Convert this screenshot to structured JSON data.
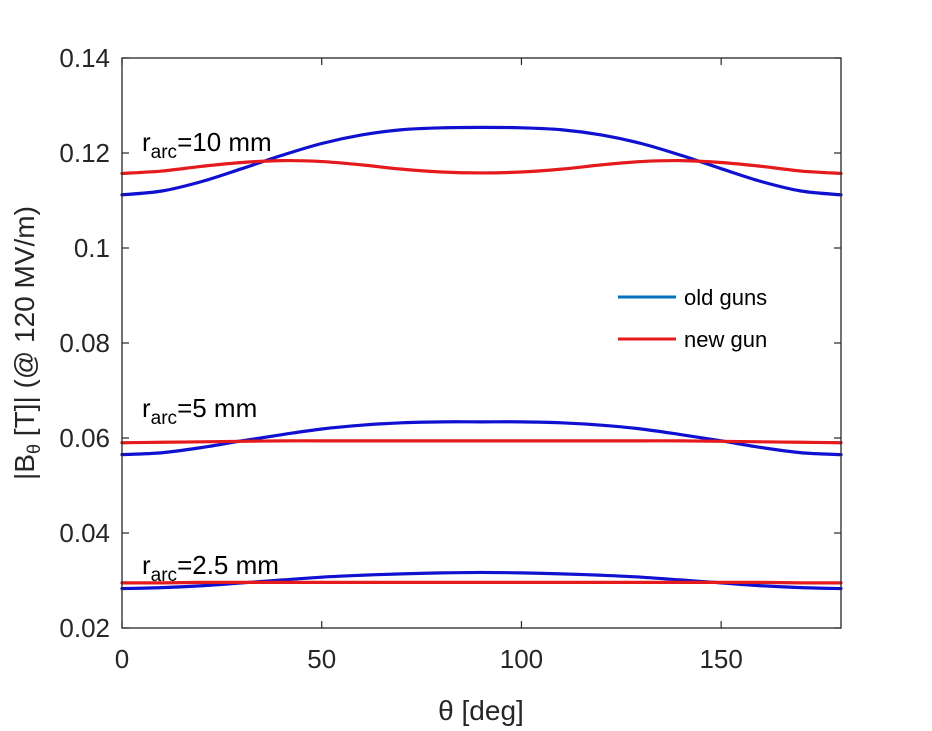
{
  "chart_data": {
    "type": "line",
    "title": "",
    "xlabel": "θ [deg]",
    "ylabel": "|B",
    "ylabel_sub": "θ",
    "ylabel_rest": " [T]| (@ 120 MV/m)",
    "xlim": [
      0,
      180
    ],
    "ylim": [
      0.02,
      0.14
    ],
    "xticks": [
      0,
      50,
      100,
      150
    ],
    "xtick_labels": [
      "0",
      "50",
      "100",
      "150"
    ],
    "yticks": [
      0.02,
      0.04,
      0.06,
      0.08,
      0.1,
      0.12,
      0.14
    ],
    "ytick_labels": [
      "0.02",
      "0.04",
      "0.06",
      "0.08",
      "0.1",
      "0.12",
      "0.14"
    ],
    "grid": false,
    "legend_position": "center-right",
    "legend": [
      {
        "label": "old guns",
        "color": "#0072BD"
      },
      {
        "label": "new gun",
        "color": "#E41A1C"
      }
    ],
    "annotations": [
      {
        "prefix": "r",
        "sub": "arc",
        "suffix": "=10 mm",
        "x": 2,
        "y": 0.1225
      },
      {
        "prefix": "r",
        "sub": "arc",
        "suffix": "=5 mm",
        "x": 2,
        "y": 0.0665
      },
      {
        "prefix": "r",
        "sub": "arc",
        "suffix": "=2.5 mm",
        "x": 2,
        "y": 0.0335
      }
    ],
    "series": [
      {
        "name": "old guns r_arc=10 mm",
        "color": "#1010D0",
        "group": "old",
        "x": [
          0,
          10,
          20,
          30,
          40,
          50,
          60,
          70,
          80,
          90,
          100,
          110,
          120,
          130,
          140,
          150,
          160,
          170,
          180
        ],
        "y": [
          0.1112,
          0.112,
          0.114,
          0.1167,
          0.1195,
          0.122,
          0.1238,
          0.1249,
          0.1253,
          0.1254,
          0.1253,
          0.1249,
          0.1238,
          0.122,
          0.1195,
          0.1167,
          0.114,
          0.112,
          0.1112
        ]
      },
      {
        "name": "new gun r_arc=10 mm",
        "color": "#E41A1C",
        "group": "new",
        "x": [
          0,
          10,
          20,
          30,
          40,
          50,
          60,
          70,
          80,
          90,
          100,
          110,
          120,
          130,
          140,
          150,
          160,
          170,
          180
        ],
        "y": [
          0.1157,
          0.1162,
          0.1172,
          0.118,
          0.1184,
          0.1182,
          0.1175,
          0.1166,
          0.116,
          0.1158,
          0.116,
          0.1166,
          0.1175,
          0.1182,
          0.1184,
          0.118,
          0.1172,
          0.1162,
          0.1157
        ]
      },
      {
        "name": "old guns r_arc=5 mm",
        "color": "#1010D0",
        "group": "old",
        "x": [
          0,
          10,
          20,
          30,
          40,
          50,
          60,
          70,
          80,
          90,
          100,
          110,
          120,
          130,
          140,
          150,
          160,
          170,
          180
        ],
        "y": [
          0.0565,
          0.0569,
          0.058,
          0.0594,
          0.0607,
          0.0619,
          0.0627,
          0.0632,
          0.0634,
          0.0634,
          0.0634,
          0.0632,
          0.0627,
          0.0619,
          0.0607,
          0.0594,
          0.058,
          0.0569,
          0.0565
        ]
      },
      {
        "name": "new gun r_arc=5 mm",
        "color": "#E41A1C",
        "group": "new",
        "x": [
          0,
          10,
          20,
          30,
          40,
          50,
          60,
          70,
          80,
          90,
          100,
          110,
          120,
          130,
          140,
          150,
          160,
          170,
          180
        ],
        "y": [
          0.059,
          0.0591,
          0.0592,
          0.0593,
          0.0594,
          0.0594,
          0.0594,
          0.0594,
          0.0594,
          0.0594,
          0.0594,
          0.0594,
          0.0594,
          0.0594,
          0.0594,
          0.0593,
          0.0592,
          0.0591,
          0.059
        ]
      },
      {
        "name": "old guns r_arc=2.5 mm",
        "color": "#1010D0",
        "group": "old",
        "x": [
          0,
          10,
          20,
          30,
          40,
          50,
          60,
          70,
          80,
          90,
          100,
          110,
          120,
          130,
          140,
          150,
          160,
          170,
          180
        ],
        "y": [
          0.0283,
          0.0285,
          0.0289,
          0.0295,
          0.0301,
          0.0307,
          0.0311,
          0.0314,
          0.0316,
          0.0317,
          0.0316,
          0.0314,
          0.0311,
          0.0307,
          0.0301,
          0.0295,
          0.0289,
          0.0285,
          0.0283
        ]
      },
      {
        "name": "new gun r_arc=2.5 mm",
        "color": "#E41A1C",
        "group": "new",
        "x": [
          0,
          10,
          20,
          30,
          40,
          50,
          60,
          70,
          80,
          90,
          100,
          110,
          120,
          130,
          140,
          150,
          160,
          170,
          180
        ],
        "y": [
          0.0295,
          0.0295,
          0.0296,
          0.0296,
          0.0296,
          0.0296,
          0.0296,
          0.0296,
          0.0296,
          0.0296,
          0.0296,
          0.0296,
          0.0296,
          0.0296,
          0.0296,
          0.0296,
          0.0296,
          0.0295,
          0.0295
        ]
      }
    ]
  }
}
